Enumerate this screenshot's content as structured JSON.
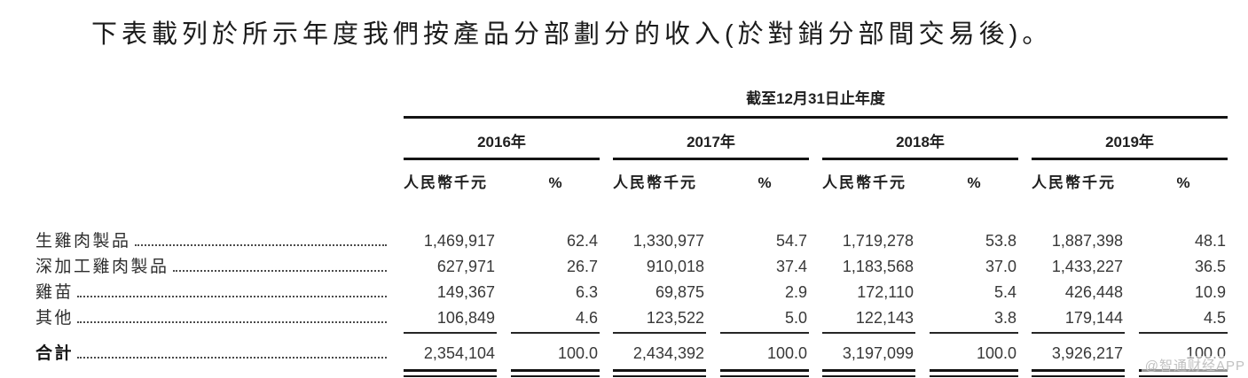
{
  "intro": "下表載列於所示年度我們按產品分部劃分的收入(於對銷分部間交易後)。",
  "table": {
    "period_header": "截至12月31日止年度",
    "year_headers": [
      "2016年",
      "2017年",
      "2018年",
      "2019年"
    ],
    "unit_label": "人民幣千元",
    "percent_label": "%",
    "rows": [
      {
        "label": "生雞肉製品",
        "cells": [
          [
            "1,469,917",
            "62.4"
          ],
          [
            "1,330,977",
            "54.7"
          ],
          [
            "1,719,278",
            "53.8"
          ],
          [
            "1,887,398",
            "48.1"
          ]
        ]
      },
      {
        "label": "深加工雞肉製品",
        "cells": [
          [
            "627,971",
            "26.7"
          ],
          [
            "910,018",
            "37.4"
          ],
          [
            "1,183,568",
            "37.0"
          ],
          [
            "1,433,227",
            "36.5"
          ]
        ]
      },
      {
        "label": "雞苗",
        "cells": [
          [
            "149,367",
            "6.3"
          ],
          [
            "69,875",
            "2.9"
          ],
          [
            "172,110",
            "5.4"
          ],
          [
            "426,448",
            "10.9"
          ]
        ]
      },
      {
        "label": "其他",
        "cells": [
          [
            "106,849",
            "4.6"
          ],
          [
            "123,522",
            "5.0"
          ],
          [
            "122,143",
            "3.8"
          ],
          [
            "179,144",
            "4.5"
          ]
        ]
      }
    ],
    "total": {
      "label": "合計",
      "cells": [
        [
          "2,354,104",
          "100.0"
        ],
        [
          "2,434,392",
          "100.0"
        ],
        [
          "3,197,099",
          "100.0"
        ],
        [
          "3,926,217",
          "100.0"
        ]
      ]
    }
  },
  "watermark": "@智通财经APP"
}
